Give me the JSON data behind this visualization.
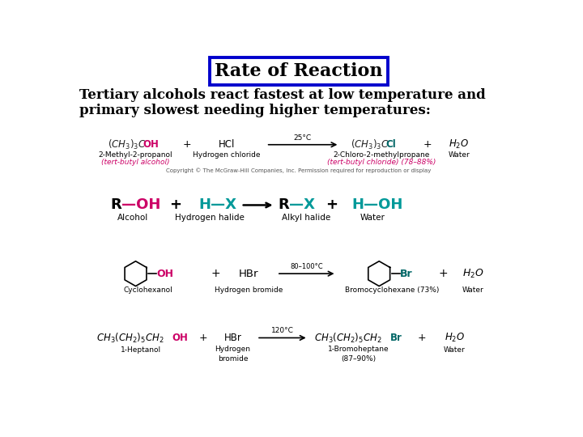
{
  "title": "Rate of Reaction",
  "title_box_color": "#0000cc",
  "title_bg_color": "#ffffff",
  "title_text_color": "#000000",
  "body_text_color": "#000000",
  "bg_color": "#ffffff",
  "subtitle_line1": "Tertiary alcohols react fastest at low temperature and",
  "subtitle_line2": "primary slowest needing higher temperatures:",
  "r1_temp": "25°C",
  "r1_label_left1": "2-Methyl-2-propanol",
  "r1_label_left2": "(tert-butyl alcohol)",
  "r1_label_mid": "Hydrogen chloride",
  "r1_label_right1": "2-Chloro-2-methylpropane",
  "r1_label_right2": "(tert-butyl chloride) (78–88%)",
  "r1_label_water": "Water",
  "r1_copyright": "Copyright © The McGraw-Hill Companies, Inc. Permission required for reproduction or display",
  "r2_label_alcohol": "Alcohol",
  "r2_label_hhalide": "Hydrogen halide",
  "r2_label_alkyl": "Alkyl halide",
  "r2_label_water": "Water",
  "r3_temp": "80–100°C",
  "r3_label_reactant": "Cyclohexanol",
  "r3_label_reagent": "Hydrogen bromide",
  "r3_label_product": "Bromocyclohexane (73%)",
  "r3_label_water": "Water",
  "r4_temp": "120°C",
  "r4_label_reactant": "1-Heptanol",
  "r4_label_reagent": "Hydrogen\nbromide",
  "r4_label_product": "1-Bromoheptane\n(87–90%)",
  "r4_label_water": "Water",
  "pink": "#cc0066",
  "teal": "#009999",
  "dark_teal": "#006666",
  "gray": "#555555"
}
